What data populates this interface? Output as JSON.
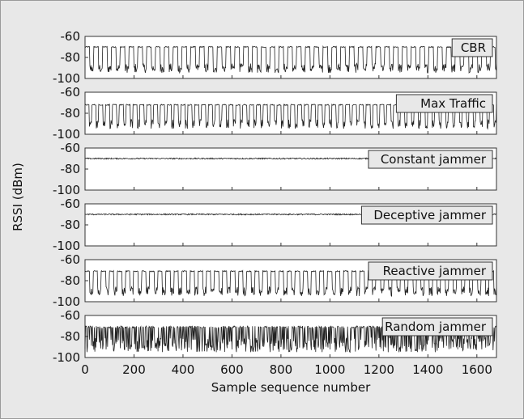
{
  "chart_data": {
    "type": "line",
    "xlabel": "Sample sequence number",
    "ylabel": "RSSI (dBm)",
    "xlim": [
      0,
      1680
    ],
    "ylim": [
      -100,
      -60
    ],
    "xticks": [
      "0",
      "200",
      "400",
      "600",
      "800",
      "1000",
      "1200",
      "1400",
      "1600"
    ],
    "yticks": [
      "-60",
      "-80",
      "-100"
    ],
    "grid": false,
    "legend": "top-right",
    "colors": {
      "line": "#222222",
      "background": "#e8e8e8",
      "plot": "#ffffff",
      "legend_bg": "#e8e8e8"
    },
    "series": [
      {
        "name": "CBR",
        "pattern": "bursts",
        "high": -70,
        "low": -92,
        "period": 36,
        "duty": 0.55
      },
      {
        "name": "Max Traffic",
        "pattern": "bursts",
        "high": -72,
        "low": -92,
        "period": 28,
        "duty": 0.6
      },
      {
        "name": "Constant jammer",
        "pattern": "constant",
        "level": -70
      },
      {
        "name": "Deceptive jammer",
        "pattern": "constant",
        "level": -70
      },
      {
        "name": "Reactive jammer",
        "pattern": "bursts",
        "high": -71,
        "low": -92,
        "period": 33,
        "duty": 0.55
      },
      {
        "name": "Random jammer",
        "pattern": "random",
        "high": -71,
        "low": -95
      }
    ]
  }
}
